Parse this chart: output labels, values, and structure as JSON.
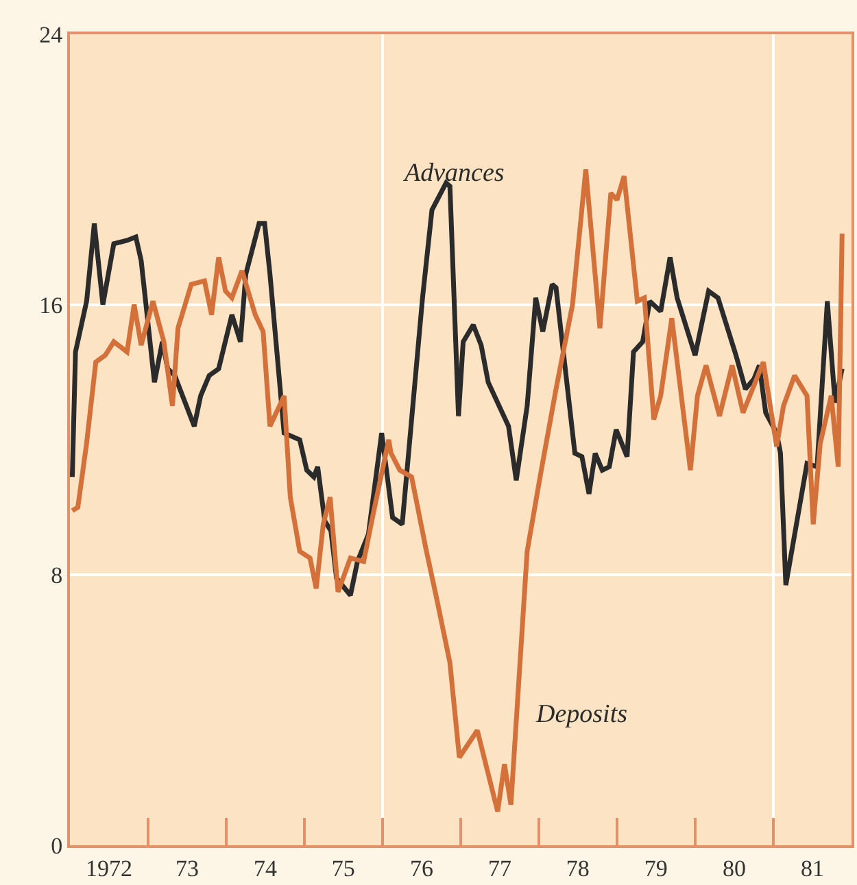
{
  "chart_data": {
    "type": "line",
    "xlim": [
      "1972-01-01",
      "1982-01-01"
    ],
    "ylim": [
      0,
      24
    ],
    "yticks": [
      0,
      8,
      16,
      24
    ],
    "xticks": [
      {
        "value": "1972-07-02",
        "label": "1972"
      },
      {
        "value": "1973-07-02",
        "label": "73"
      },
      {
        "value": "1974-07-02",
        "label": "74"
      },
      {
        "value": "1975-07-02",
        "label": "75"
      },
      {
        "value": "1976-07-02",
        "label": "76"
      },
      {
        "value": "1977-07-02",
        "label": "77"
      },
      {
        "value": "1978-07-02",
        "label": "78"
      },
      {
        "value": "1979-07-02",
        "label": "79"
      },
      {
        "value": "1980-07-02",
        "label": "80"
      },
      {
        "value": "1981-07-02",
        "label": "81"
      }
    ],
    "grid": "y",
    "marker": "none",
    "line_style": "solid",
    "ref_lines": [
      {
        "axis": "x",
        "value": "1976-01-01",
        "label": null,
        "color": "#ffffff"
      },
      {
        "axis": "x",
        "value": "1981-01-01",
        "label": null,
        "color": "#ffffff"
      }
    ],
    "annotations": [
      "Advances",
      "Deposits"
    ],
    "series": [
      {
        "color": "#2b2b2b",
        "x": [
          "1972-01-12",
          "1972-01-27",
          "1972-03-19",
          "1972-04-24",
          "1972-06-03",
          "1972-07-24",
          "1972-09-24",
          "1972-11-04",
          "1972-11-29",
          "1973-01-30",
          "1973-03-08",
          "1973-04-02",
          "1973-05-05",
          "1973-08-04",
          "1973-09-03",
          "1973-10-13",
          "1973-11-26",
          "1974-01-27",
          "1974-03-08",
          "1974-04-02",
          "1974-06-03",
          "1974-06-29",
          "1974-07-24",
          "1974-09-28",
          "1974-12-10",
          "1975-01-12",
          "1975-02-14",
          "1975-03-04",
          "1975-04-06",
          "1975-05-05",
          "1975-05-31",
          "1975-08-04",
          "1975-09-06",
          "1975-10-27",
          "1975-12-28",
          "1976-02-17",
          "1976-04-02",
          "1976-07-06",
          "1976-08-19",
          "1976-10-24",
          "1976-11-11",
          "1976-12-21",
          "1977-01-12",
          "1977-02-28",
          "1977-04-06",
          "1977-05-09",
          "1977-08-12",
          "1977-09-17",
          "1977-11-07",
          "1977-12-17",
          "1978-01-19",
          "1978-03-04",
          "1978-03-22",
          "1978-06-18",
          "1978-07-21",
          "1978-08-23",
          "1978-09-21",
          "1978-10-24",
          "1978-11-26",
          "1978-12-28",
          "1979-02-17",
          "1979-03-19",
          "1979-05-01",
          "1979-06-03",
          "1979-07-24",
          "1979-09-06",
          "1979-10-09",
          "1980-01-01",
          "1980-03-04",
          "1980-04-17",
          "1980-07-10",
          "1980-08-23",
          "1980-10-02",
          "1980-10-27",
          "1980-11-26",
          "1981-01-16",
          "1981-02-03",
          "1981-02-28",
          "1981-06-07",
          "1981-07-24",
          "1981-09-10",
          "1981-10-16",
          "1981-11-18"
        ],
        "values": [
          10.9,
          14.6,
          16.1,
          18.4,
          16.0,
          17.8,
          17.9,
          18.0,
          17.3,
          13.7,
          14.9,
          14.1,
          13.9,
          12.4,
          13.3,
          13.9,
          14.1,
          15.7,
          14.9,
          16.9,
          18.4,
          18.4,
          16.9,
          12.2,
          12.0,
          11.1,
          10.9,
          11.2,
          9.6,
          9.3,
          7.9,
          7.4,
          8.4,
          9.2,
          12.2,
          9.7,
          9.5,
          16.2,
          18.8,
          19.6,
          19.5,
          12.7,
          14.9,
          15.4,
          14.8,
          13.7,
          12.4,
          10.8,
          13.0,
          16.2,
          15.2,
          16.6,
          16.5,
          11.6,
          11.5,
          10.4,
          11.6,
          11.1,
          11.2,
          12.3,
          11.5,
          14.6,
          14.9,
          16.1,
          15.8,
          17.4,
          16.2,
          14.5,
          16.4,
          16.2,
          14.5,
          13.5,
          13.8,
          14.2,
          12.8,
          12.2,
          11.6,
          7.7,
          11.3,
          11.2,
          16.1,
          13.1,
          14.1
        ]
      },
      {
        "color": "#d4703a",
        "x": [
          "1972-01-12",
          "1972-02-07",
          "1972-03-19",
          "1972-05-01",
          "1972-06-14",
          "1972-07-24",
          "1972-09-24",
          "1972-10-27",
          "1972-11-29",
          "1973-01-23",
          "1973-03-15",
          "1973-04-24",
          "1973-05-20",
          "1973-07-21",
          "1973-09-21",
          "1973-10-24",
          "1973-11-26",
          "1973-12-28",
          "1974-01-27",
          "1974-03-15",
          "1974-05-16",
          "1974-06-22",
          "1974-07-24",
          "1974-09-28",
          "1974-10-27",
          "1974-12-10",
          "1975-01-27",
          "1975-02-25",
          "1975-03-30",
          "1975-05-01",
          "1975-06-07",
          "1975-08-04",
          "1975-10-05",
          "1975-11-15",
          "1976-01-30",
          "1976-02-10",
          "1976-03-22",
          "1976-05-16",
          "1976-07-21",
          "1976-09-10",
          "1976-11-11",
          "1976-12-25",
          "1977-03-19",
          "1977-06-22",
          "1977-07-24",
          "1977-08-23",
          "1977-11-07",
          "1978-01-12",
          "1978-03-22",
          "1978-06-07",
          "1978-08-08",
          "1978-10-13",
          "1978-12-03",
          "1979-01-01",
          "1979-02-03",
          "1979-04-06",
          "1979-05-09",
          "1979-06-22",
          "1979-07-24",
          "1979-09-14",
          "1979-12-10",
          "1980-01-12",
          "1980-02-21",
          "1980-04-24",
          "1980-06-22",
          "1980-08-12",
          "1980-11-15",
          "1981-01-16",
          "1981-02-17",
          "1981-04-10",
          "1981-06-07",
          "1981-07-06",
          "1981-08-08",
          "1981-09-28",
          "1981-10-31",
          "1981-11-18"
        ],
        "values": [
          9.9,
          10.0,
          11.9,
          14.3,
          14.5,
          14.9,
          14.6,
          16.0,
          14.8,
          16.1,
          14.9,
          13.0,
          15.3,
          16.6,
          16.7,
          15.7,
          17.4,
          16.4,
          16.2,
          17.0,
          15.7,
          15.2,
          12.4,
          13.3,
          10.3,
          8.7,
          8.5,
          7.6,
          9.5,
          10.3,
          7.5,
          8.5,
          8.4,
          9.7,
          12.0,
          11.6,
          11.1,
          10.9,
          8.8,
          7.3,
          5.4,
          2.6,
          3.4,
          1.0,
          2.4,
          1.2,
          8.7,
          11.1,
          13.5,
          16.0,
          20.0,
          15.3,
          19.3,
          19.1,
          19.8,
          16.1,
          16.2,
          12.6,
          13.3,
          15.6,
          11.1,
          13.3,
          14.2,
          12.7,
          14.2,
          12.8,
          14.3,
          11.8,
          13.0,
          13.9,
          13.3,
          9.5,
          11.9,
          13.3,
          11.2,
          18.1
        ]
      }
    ]
  }
}
